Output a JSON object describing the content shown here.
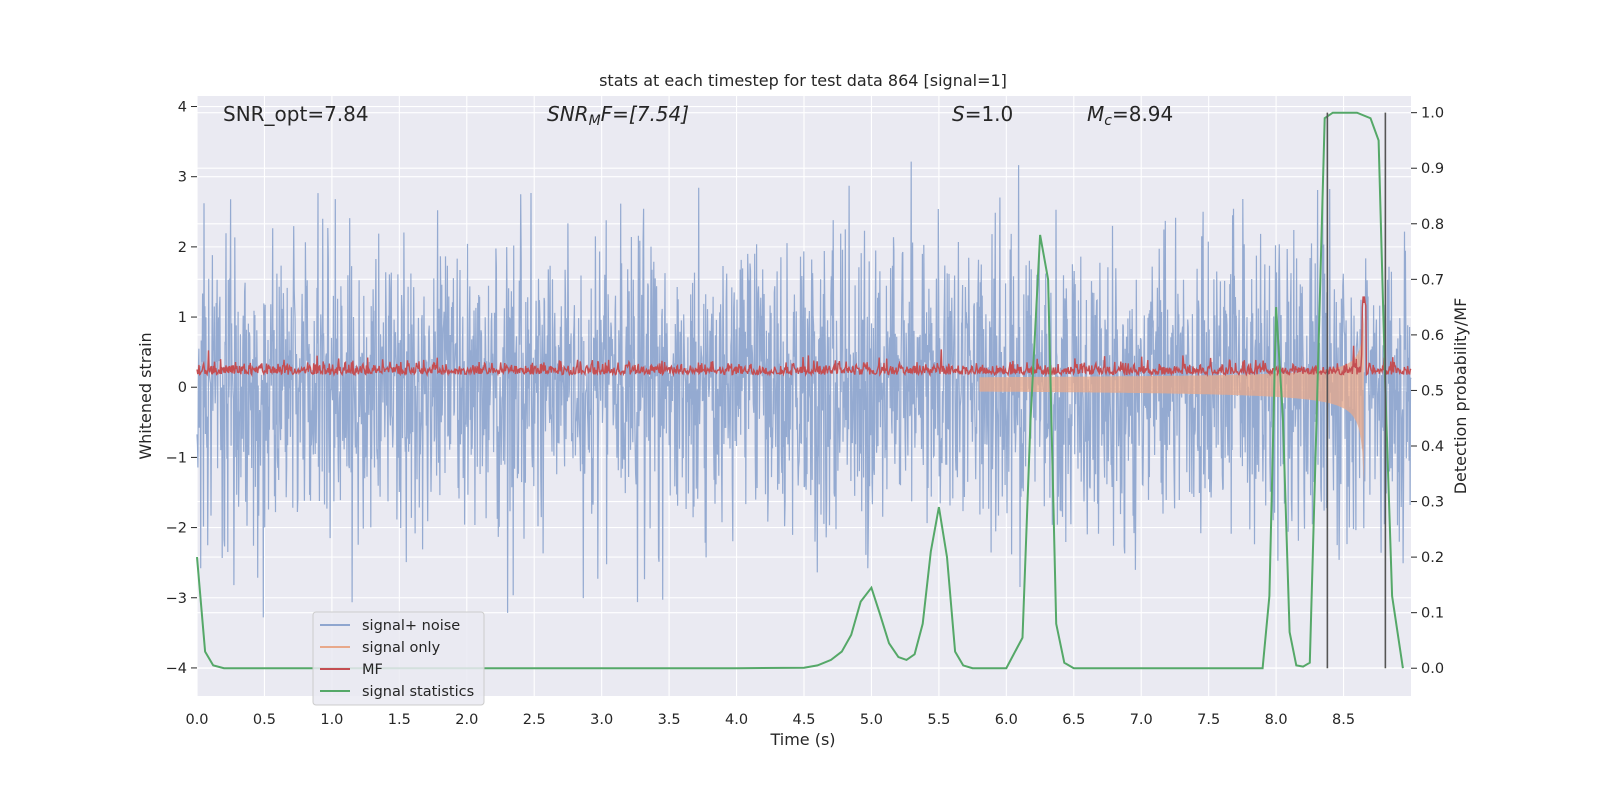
{
  "chart_data": {
    "type": "line",
    "title": "stats at each timestep for test data 864 [signal=1]",
    "xlabel": "Time (s)",
    "ylabel": "Whitened strain",
    "ylabel_right": "Detection probability/MF",
    "xlim": [
      0.0,
      9.0
    ],
    "ylim": [
      -4.4,
      4.15
    ],
    "ylim_right": [
      -0.05,
      1.03
    ],
    "xticks": [
      0.0,
      0.5,
      1.0,
      1.5,
      2.0,
      2.5,
      3.0,
      3.5,
      4.0,
      4.5,
      5.0,
      5.5,
      6.0,
      6.5,
      7.0,
      7.5,
      8.0,
      8.5
    ],
    "xtick_labels": [
      "0.0",
      "0.5",
      "1.0",
      "1.5",
      "2.0",
      "2.5",
      "3.0",
      "3.5",
      "4.0",
      "4.5",
      "5.0",
      "5.5",
      "6.0",
      "6.5",
      "7.0",
      "7.5",
      "8.0",
      "8.5"
    ],
    "yticks": [
      4,
      3,
      2,
      1,
      0,
      -1,
      -2,
      -3,
      -4
    ],
    "ytick_labels": [
      "4",
      "3",
      "2",
      "1",
      "0",
      "−1",
      "−2",
      "−3",
      "−4"
    ],
    "yticks_right": [
      1.0,
      0.9,
      0.8,
      0.7,
      0.6,
      0.5,
      0.4,
      0.3,
      0.2,
      0.1,
      0.0
    ],
    "ytick_labels_right": [
      "1.0",
      "0.9",
      "0.8",
      "0.7",
      "0.6",
      "0.5",
      "0.4",
      "0.3",
      "0.2",
      "0.1",
      "0.0"
    ],
    "annotations": {
      "snr_opt": "SNR_opt=7.84",
      "snr_mf_main": "SNR",
      "snr_mf_sub": "M",
      "snr_mf_rest": "F=[7.54]",
      "s_main": "S",
      "s_rest": "=1.0",
      "mc_main": "M",
      "mc_sub": "c",
      "mc_rest": "=8.94"
    },
    "legend": {
      "placement": "lower-left",
      "entries": [
        "signal+ noise",
        "signal only",
        "MF",
        "signal statistics"
      ]
    },
    "colors": {
      "noise": "#8fa6cf",
      "signal": "#e8a88a",
      "mf": "#c44e52",
      "stat": "#55a868",
      "vline": "#555555",
      "plot_bg": "#eaeaf2",
      "grid": "#ffffff"
    },
    "series": [
      {
        "name": "signal statistics",
        "axis": "right",
        "x": [
          0.0,
          0.06,
          0.12,
          0.2,
          0.3,
          0.5,
          1.0,
          2.0,
          3.0,
          4.0,
          4.5,
          4.6,
          4.7,
          4.78,
          4.85,
          4.92,
          5.0,
          5.06,
          5.13,
          5.2,
          5.26,
          5.32,
          5.38,
          5.44,
          5.5,
          5.56,
          5.62,
          5.68,
          5.75,
          5.85,
          6.0,
          6.12,
          6.18,
          6.25,
          6.31,
          6.37,
          6.43,
          6.5,
          6.6,
          7.0,
          7.5,
          7.9,
          7.95,
          8.0,
          8.05,
          8.1,
          8.15,
          8.2,
          8.25,
          8.3,
          8.36,
          8.42,
          8.5,
          8.6,
          8.7,
          8.76,
          8.81,
          8.86,
          8.94
        ],
        "values": [
          0.2,
          0.03,
          0.005,
          0.0,
          0.0,
          0.0,
          0.0,
          0.0,
          0.0,
          0.0,
          0.001,
          0.005,
          0.015,
          0.03,
          0.06,
          0.12,
          0.145,
          0.1,
          0.045,
          0.02,
          0.015,
          0.025,
          0.08,
          0.21,
          0.29,
          0.2,
          0.03,
          0.005,
          0.0,
          0.0,
          0.0,
          0.055,
          0.45,
          0.78,
          0.7,
          0.08,
          0.01,
          0.0,
          0.0,
          0.0,
          0.0,
          0.0,
          0.13,
          0.65,
          0.45,
          0.065,
          0.005,
          0.003,
          0.01,
          0.45,
          0.99,
          1.0,
          1.0,
          1.0,
          0.99,
          0.95,
          0.5,
          0.13,
          0.0
        ]
      }
    ],
    "vlines_x": [
      8.38,
      8.81
    ]
  }
}
